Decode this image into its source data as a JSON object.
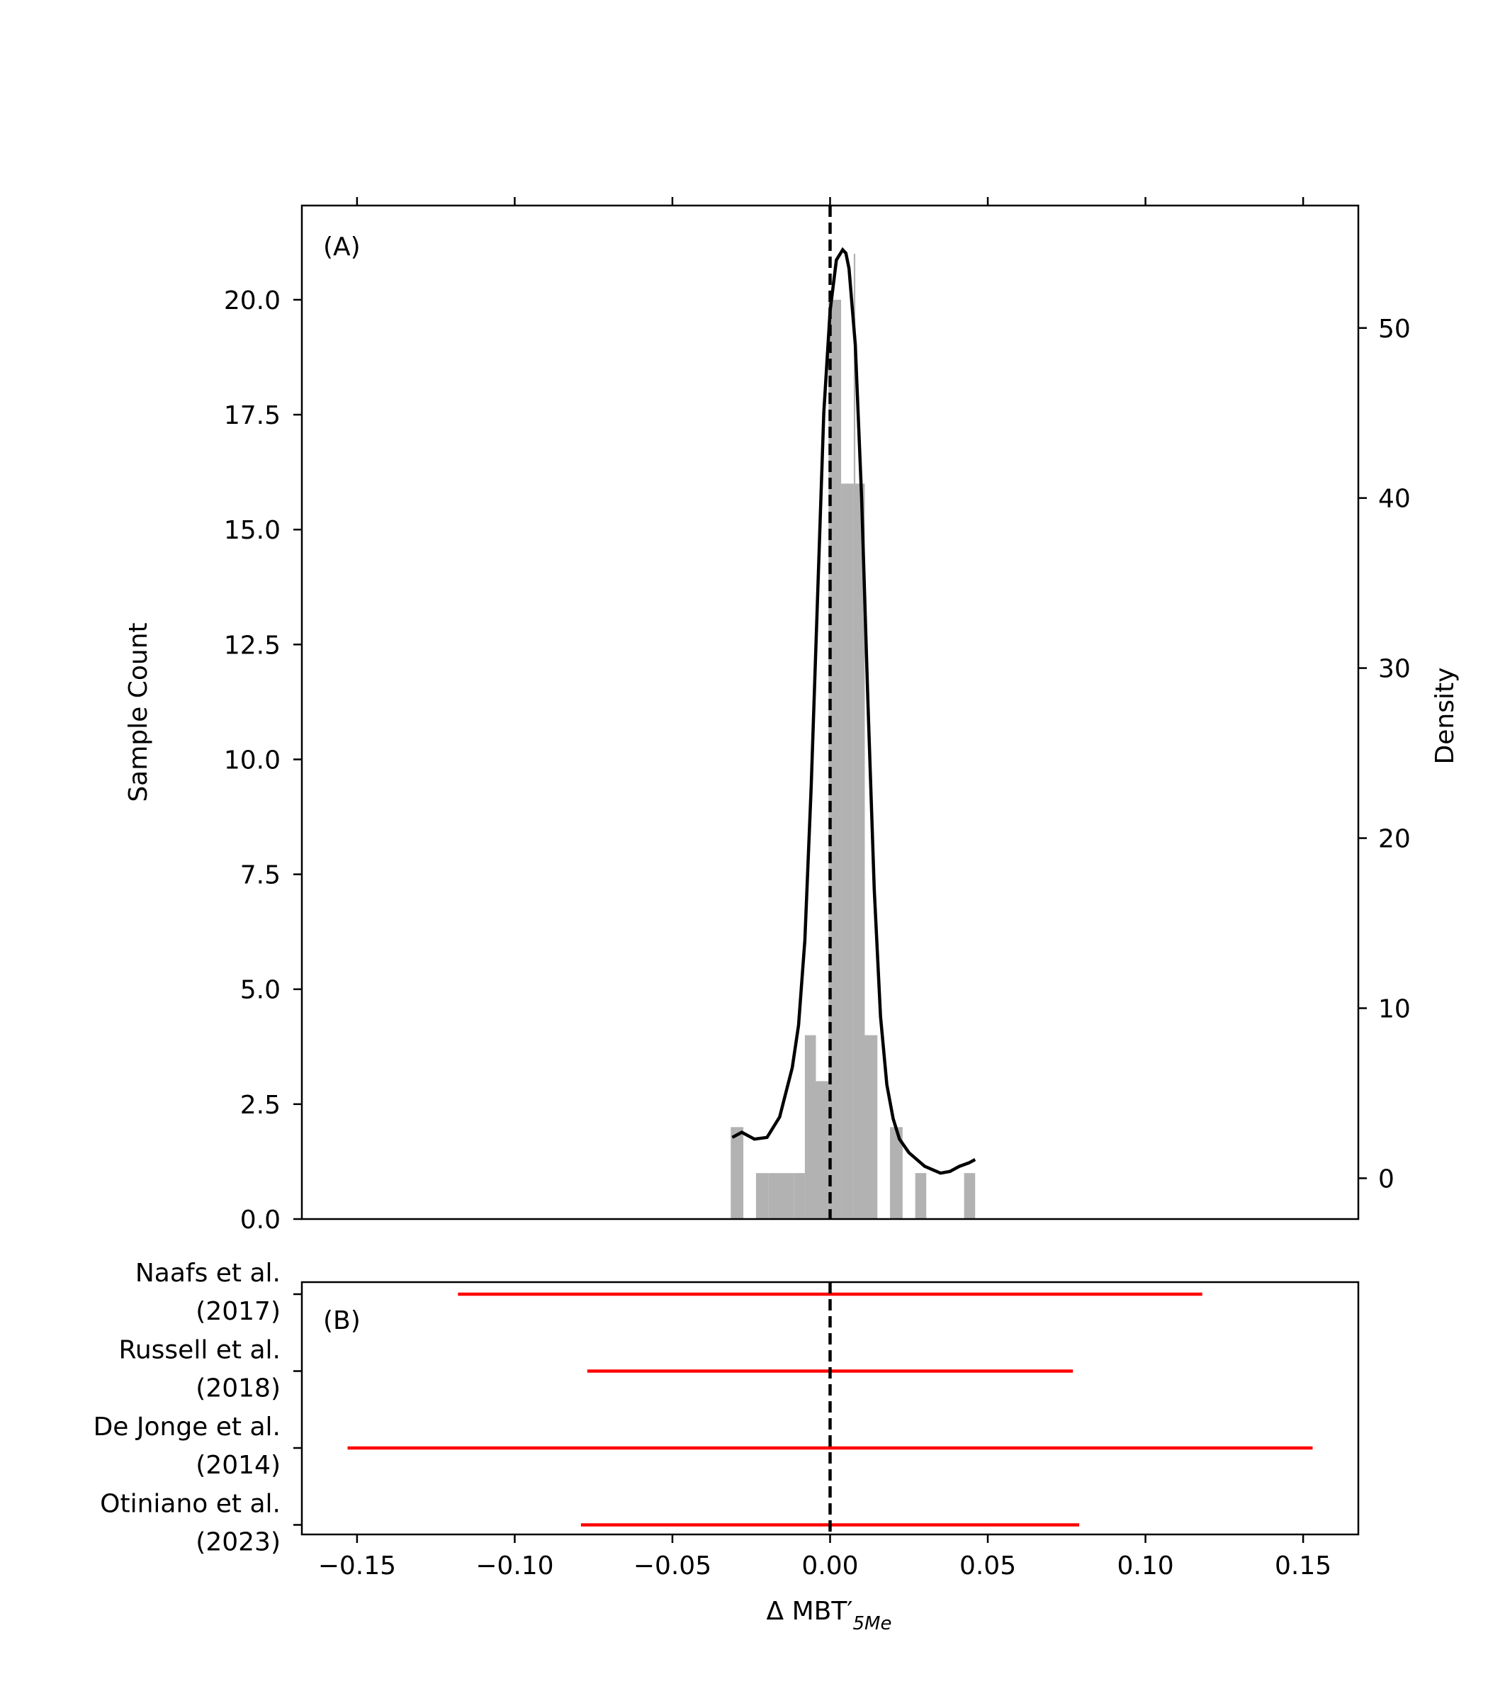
{
  "chart_data": [
    {
      "type": "bar",
      "panel_label": "(A)",
      "xlabel": "Δ MBT′",
      "xlabel_subscript": "5Me",
      "ylabel": "Sample Count",
      "ylabel_right": "Density",
      "xlim": [
        -0.1675,
        0.1675
      ],
      "ylim": [
        0,
        22.05
      ],
      "ylim_right": [
        -2.4,
        57.2
      ],
      "yticks": [
        "0.0",
        "2.5",
        "5.0",
        "7.5",
        "10.0",
        "12.5",
        "15.0",
        "17.5",
        "20.0"
      ],
      "yticks_right": [
        "0",
        "10",
        "20",
        "30",
        "40",
        "50"
      ],
      "grid": false,
      "histogram": [
        {
          "x0": -0.0315,
          "x1": -0.0275,
          "count": 2
        },
        {
          "x0": -0.0235,
          "x1": -0.0195,
          "count": 1
        },
        {
          "x0": -0.0195,
          "x1": -0.0155,
          "count": 1
        },
        {
          "x0": -0.0155,
          "x1": -0.0115,
          "count": 1
        },
        {
          "x0": -0.0115,
          "x1": -0.008,
          "count": 1
        },
        {
          "x0": -0.008,
          "x1": -0.0045,
          "count": 4
        },
        {
          "x0": -0.0045,
          "x1": -0.0005,
          "count": 3
        },
        {
          "x0": -0.0005,
          "x1": 0.0035,
          "count": 20
        },
        {
          "x0": 0.0035,
          "x1": 0.0075,
          "count": 16
        },
        {
          "x0": 0.0075,
          "x1": 0.011,
          "count": 16
        },
        {
          "x0": 0.0075,
          "x1": 0.008,
          "count": 21
        },
        {
          "x0": 0.011,
          "x1": 0.015,
          "count": 4
        },
        {
          "x0": 0.019,
          "x1": 0.023,
          "count": 2
        },
        {
          "x0": 0.027,
          "x1": 0.0305,
          "count": 1
        },
        {
          "x0": 0.0425,
          "x1": 0.046,
          "count": 1
        }
      ],
      "density_curve": {
        "x": [
          -0.031,
          -0.028,
          -0.024,
          -0.02,
          -0.016,
          -0.012,
          -0.01,
          -0.008,
          -0.006,
          -0.004,
          -0.002,
          0.0,
          0.002,
          0.004,
          0.005,
          0.006,
          0.008,
          0.01,
          0.012,
          0.014,
          0.016,
          0.018,
          0.02,
          0.022,
          0.025,
          0.03,
          0.035,
          0.038,
          0.041,
          0.044,
          0.046
        ],
        "y": [
          2.4,
          2.7,
          2.3,
          2.4,
          3.6,
          6.5,
          9.0,
          14.0,
          23.0,
          34.0,
          45.0,
          51.0,
          54.0,
          54.6,
          54.4,
          53.5,
          49.0,
          40.0,
          28.0,
          17.0,
          9.5,
          5.5,
          3.5,
          2.3,
          1.5,
          0.7,
          0.3,
          0.4,
          0.7,
          0.9,
          1.1
        ]
      },
      "reference_line_x": 0.0
    },
    {
      "type": "range",
      "panel_label": "(B)",
      "xlim": [
        -0.1675,
        0.1675
      ],
      "xticks": [
        "−0.15",
        "−0.10",
        "−0.05",
        "0.00",
        "0.05",
        "0.10",
        "0.15"
      ],
      "xtick_values": [
        -0.15,
        -0.1,
        -0.05,
        0.0,
        0.05,
        0.1,
        0.15
      ],
      "categories": [
        {
          "line1": "Naafs et al.",
          "line2": "(2017)",
          "min": -0.118,
          "max": 0.118
        },
        {
          "line1": "Russell et al.",
          "line2": "(2018)",
          "min": -0.077,
          "max": 0.077
        },
        {
          "line1": "De Jonge et al.",
          "line2": "(2014)",
          "min": -0.153,
          "max": 0.153
        },
        {
          "line1": "Otiniano et al.",
          "line2": "(2023)",
          "min": -0.079,
          "max": 0.079
        }
      ],
      "range_color": "#ff0000",
      "reference_line_x": 0.0
    }
  ],
  "colors": {
    "bar": "#b2b2b2",
    "curve": "#000000",
    "reference_line": "#000000",
    "range": "#ff0000"
  }
}
